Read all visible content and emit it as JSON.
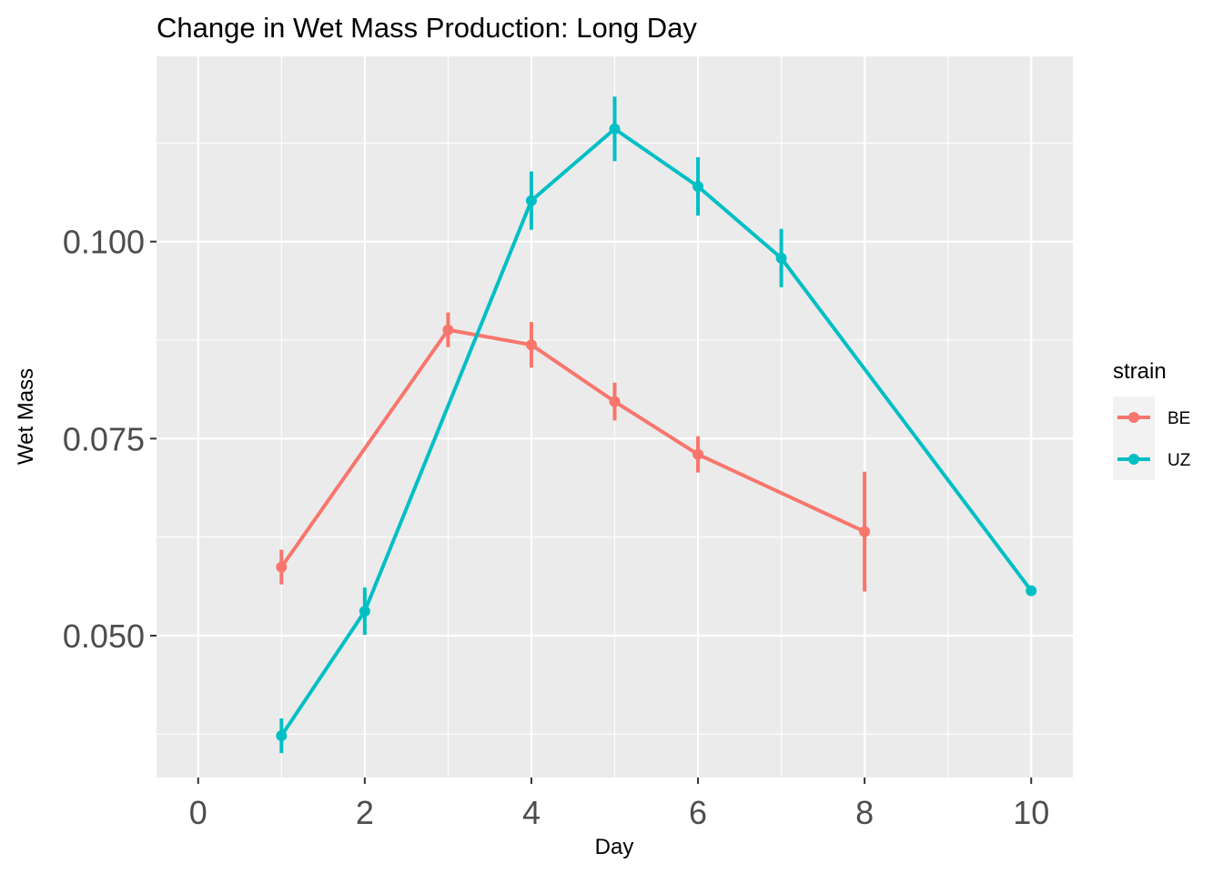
{
  "chart_data": {
    "type": "line",
    "title": "Change in Wet Mass Production: Long Day",
    "xlabel": "Day",
    "ylabel": "Wet Mass",
    "xlim": [
      -0.5,
      10.5
    ],
    "ylim": [
      0.032,
      0.1235
    ],
    "x_ticks": [
      0,
      2,
      4,
      6,
      8,
      10
    ],
    "x_tick_labels": [
      "0",
      "2",
      "4",
      "6",
      "8",
      "10"
    ],
    "y_ticks": [
      0.05,
      0.075,
      0.1
    ],
    "y_tick_labels": [
      "0.050",
      "0.075",
      "0.100"
    ],
    "grid": true,
    "legend": {
      "title": "strain",
      "position": "right"
    },
    "series": [
      {
        "name": "BE",
        "color": "#F8766D",
        "x": [
          1,
          3,
          4,
          5,
          6,
          8
        ],
        "y": [
          0.0587,
          0.0888,
          0.0869,
          0.0797,
          0.073,
          0.0632
        ],
        "error": [
          0.0022,
          0.0022,
          0.0029,
          0.0024,
          0.0023,
          0.0076
        ]
      },
      {
        "name": "UZ",
        "color": "#00BFC4",
        "x": [
          1,
          2,
          4,
          5,
          6,
          7,
          10
        ],
        "y": [
          0.0373,
          0.0531,
          0.1052,
          0.1143,
          0.107,
          0.0979,
          0.0557
        ],
        "error": [
          0.0022,
          0.003,
          0.0037,
          0.0041,
          0.0037,
          0.0037,
          0.0005
        ]
      }
    ]
  }
}
